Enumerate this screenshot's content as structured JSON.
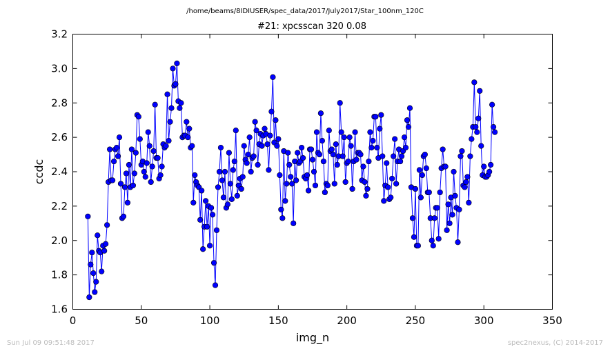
{
  "header": {
    "file_path": "/home/beams/8IDIUSER/spec_data/2017/July2017/Star_100nm_120C"
  },
  "footer": {
    "timestamp": "Sun Jul 09 09:51:48 2017",
    "credit": "spec2nexus, (C) 2014-2017"
  },
  "colors": {
    "series_line": "#0000ff",
    "series_marker_fill": "#0000ff",
    "series_marker_edge": "#000000"
  },
  "chart_data": {
    "type": "line",
    "title": "#21: xpcsscan 320 0.08",
    "xlabel": "img_n",
    "ylabel": "ccdc",
    "xlim": [
      0,
      350
    ],
    "ylim": [
      1.6,
      3.2
    ],
    "xticks": [
      "0",
      "50",
      "100",
      "150",
      "200",
      "250",
      "300",
      "350"
    ],
    "yticks": [
      "1.6",
      "1.8",
      "2.0",
      "2.2",
      "2.4",
      "2.6",
      "2.8",
      "3.0",
      "3.2"
    ],
    "grid": false,
    "legend": "none",
    "marker": "circle",
    "x_start": 11,
    "x_step": 1,
    "values": [
      2.14,
      1.67,
      1.86,
      1.93,
      1.81,
      1.7,
      1.76,
      2.03,
      1.94,
      1.93,
      1.82,
      1.97,
      1.94,
      1.98,
      2.09,
      2.34,
      2.53,
      2.35,
      2.35,
      2.46,
      2.53,
      2.54,
      2.49,
      2.6,
      2.33,
      2.13,
      2.14,
      2.31,
      2.39,
      2.22,
      2.44,
      2.31,
      2.53,
      2.32,
      2.39,
      2.51,
      2.73,
      2.72,
      2.59,
      2.44,
      2.46,
      2.4,
      2.37,
      2.45,
      2.63,
      2.55,
      2.34,
      2.43,
      2.52,
      2.79,
      2.48,
      2.48,
      2.36,
      2.38,
      2.43,
      2.56,
      2.54,
      2.55,
      2.85,
      2.58,
      2.69,
      2.77,
      3.0,
      2.9,
      2.91,
      3.03,
      2.81,
      2.77,
      2.8,
      2.6,
      2.61,
      2.61,
      2.69,
      2.6,
      2.65,
      2.54,
      2.55,
      2.22,
      2.38,
      2.34,
      2.32,
      2.31,
      2.12,
      2.29,
      1.95,
      2.08,
      2.23,
      2.08,
      2.2,
      1.97,
      2.19,
      2.15,
      1.87,
      1.74,
      2.06,
      2.31,
      2.4,
      2.54,
      2.35,
      2.25,
      2.4,
      2.19,
      2.21,
      2.51,
      2.33,
      2.24,
      2.41,
      2.46,
      2.64,
      2.26,
      2.32,
      2.36,
      2.3,
      2.37,
      2.55,
      2.47,
      2.45,
      2.5,
      2.6,
      2.4,
      2.48,
      2.49,
      2.69,
      2.64,
      2.44,
      2.56,
      2.62,
      2.55,
      2.61,
      2.65,
      2.62,
      2.56,
      2.41,
      2.61,
      2.75,
      2.95,
      2.57,
      2.7,
      2.55,
      2.59,
      2.38,
      2.18,
      2.13,
      2.52,
      2.23,
      2.33,
      2.51,
      2.44,
      2.37,
      2.33,
      2.1,
      2.46,
      2.35,
      2.51,
      2.45,
      2.46,
      2.54,
      2.48,
      2.37,
      2.36,
      2.38,
      2.29,
      2.53,
      2.53,
      2.47,
      2.4,
      2.32,
      2.63,
      2.51,
      2.5,
      2.74,
      2.58,
      2.46,
      2.28,
      2.33,
      2.32,
      2.64,
      2.52,
      2.53,
      2.5,
      2.33,
      2.56,
      2.44,
      2.49,
      2.8,
      2.63,
      2.49,
      2.6,
      2.34,
      2.45,
      2.46,
      2.6,
      2.55,
      2.3,
      2.46,
      2.63,
      2.47,
      2.51,
      2.51,
      2.5,
      2.35,
      2.43,
      2.34,
      2.26,
      2.3,
      2.46,
      2.63,
      2.54,
      2.58,
      2.72,
      2.72,
      2.54,
      2.48,
      2.65,
      2.73,
      2.49,
      2.23,
      2.32,
      2.45,
      2.31,
      2.24,
      2.25,
      2.36,
      2.49,
      2.59,
      2.33,
      2.46,
      2.53,
      2.46,
      2.49,
      2.52,
      2.6,
      2.54,
      2.7,
      2.66,
      2.77,
      2.31,
      2.13,
      2.02,
      2.3,
      1.97,
      1.97,
      2.41,
      2.25,
      2.38,
      2.49,
      2.5,
      2.42,
      2.28,
      2.28,
      2.13,
      2.0,
      1.97,
      2.13,
      2.19,
      2.19,
      2.01,
      2.28,
      2.42,
      2.53,
      2.43,
      2.43,
      2.06,
      2.21,
      2.1,
      2.25,
      2.15,
      2.4,
      2.26,
      2.19,
      1.99,
      2.18,
      2.49,
      2.52,
      2.32,
      2.31,
      2.34,
      2.37,
      2.22,
      2.49,
      2.59,
      2.66,
      2.92,
      2.66,
      2.63,
      2.71,
      2.87,
      2.55,
      2.38,
      2.43,
      2.37,
      2.37,
      2.38,
      2.4,
      2.44,
      2.79,
      2.66,
      2.63
    ]
  }
}
